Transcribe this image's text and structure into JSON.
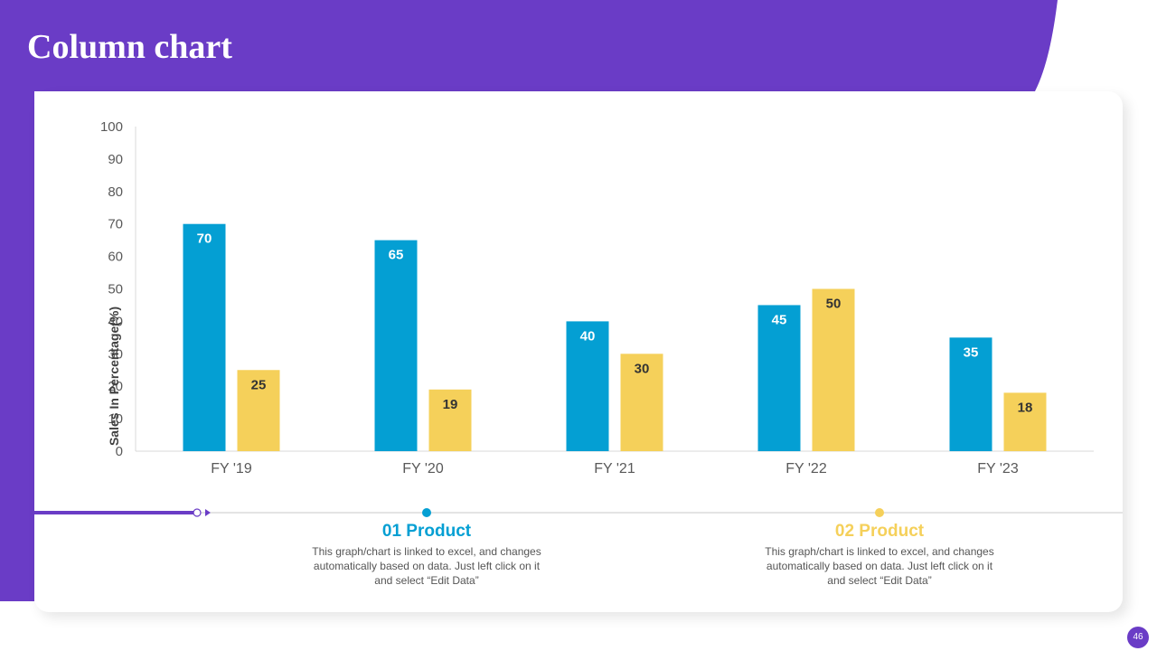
{
  "slide": {
    "title": "Column chart",
    "page_number": "46"
  },
  "colors": {
    "purple": "#6A3CC6",
    "product1": "#049FD3",
    "product2": "#F5D05A",
    "product1_label": "#FFFFFF",
    "product2_label": "#333333"
  },
  "legend": [
    {
      "title": "01 Product",
      "description": "This graph/chart is linked to excel, and changes automatically based on data. Just left click on it and select “Edit Data”"
    },
    {
      "title": "02 Product",
      "description": "This graph/chart is linked to excel, and changes automatically based on data. Just left click on it and select “Edit Data”"
    }
  ],
  "chart_data": {
    "type": "bar",
    "title": "",
    "ylabel": "Sales In Percentage(%)",
    "xlabel": "",
    "ylim": [
      0,
      100
    ],
    "yticks": [
      0,
      10,
      20,
      30,
      40,
      50,
      60,
      70,
      80,
      90,
      100
    ],
    "categories": [
      "FY '19",
      "FY '20",
      "FY '21",
      "FY '22",
      "FY '23"
    ],
    "series": [
      {
        "values": [
          70,
          65,
          40,
          45,
          35
        ]
      },
      {
        "values": [
          25,
          19,
          30,
          50,
          18
        ]
      }
    ],
    "grid": false,
    "data_labels": true
  }
}
